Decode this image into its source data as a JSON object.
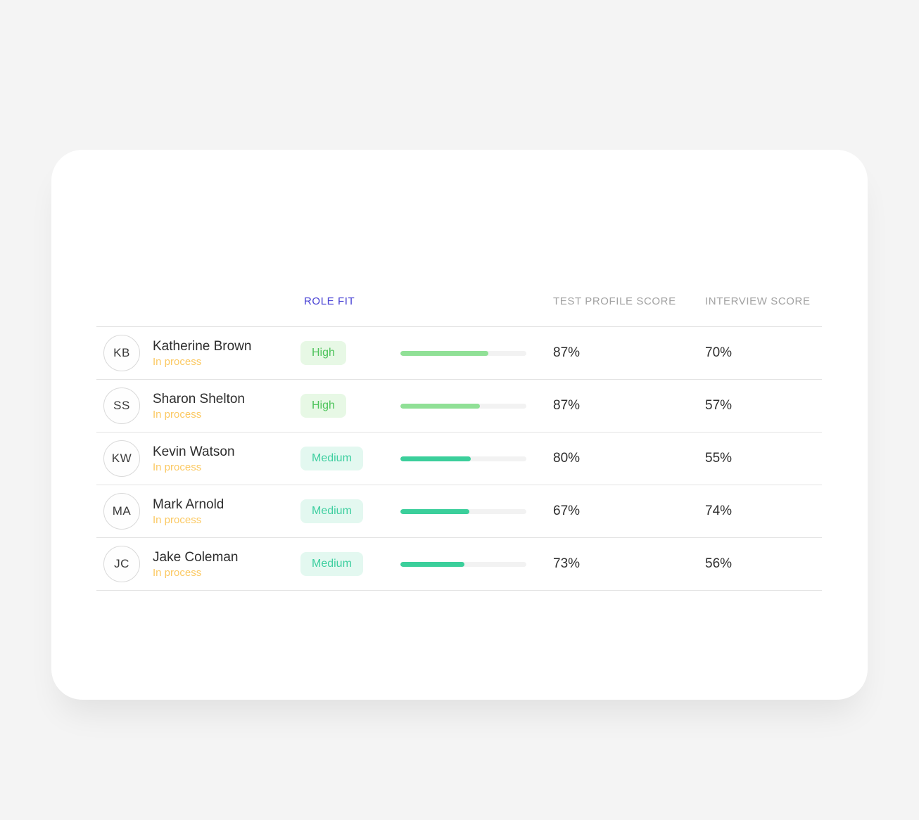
{
  "header": {
    "role_fit": "ROLE FIT",
    "test_profile_score": "TEST PROFILE SCORE",
    "interview_score": "INTERVIEW SCORE"
  },
  "candidates": [
    {
      "initials": "KB",
      "name": "Katherine Brown",
      "status": "In process",
      "role_fit": "High",
      "progress_pct": 70,
      "test_profile_score": "87%",
      "interview_score": "70%"
    },
    {
      "initials": "SS",
      "name": "Sharon Shelton",
      "status": "In process",
      "role_fit": "High",
      "progress_pct": 63,
      "test_profile_score": "87%",
      "interview_score": "57%"
    },
    {
      "initials": "KW",
      "name": "Kevin Watson",
      "status": "In process",
      "role_fit": "Medium",
      "progress_pct": 56,
      "test_profile_score": "80%",
      "interview_score": "55%"
    },
    {
      "initials": "MA",
      "name": "Mark Arnold",
      "status": "In process",
      "role_fit": "Medium",
      "progress_pct": 55,
      "test_profile_score": "67%",
      "interview_score": "74%"
    },
    {
      "initials": "JC",
      "name": "Jake Coleman",
      "status": "In process",
      "role_fit": "Medium",
      "progress_pct": 51,
      "test_profile_score": "73%",
      "interview_score": "56%"
    }
  ],
  "colors": {
    "page_background": "#f4f4f4",
    "card_background": "#ffffff",
    "active_header": "#4740d4",
    "muted_header": "#a2a2a2",
    "status_text": "#fbc963",
    "badge_high_text": "#4cc35a",
    "badge_high_bg": "#e7f8e5",
    "badge_medium_text": "#3ecfa0",
    "badge_medium_bg": "#e3f8f0",
    "progress_high": "#90e096",
    "progress_medium": "#3bcf9b",
    "divider": "#e3e3e3"
  }
}
